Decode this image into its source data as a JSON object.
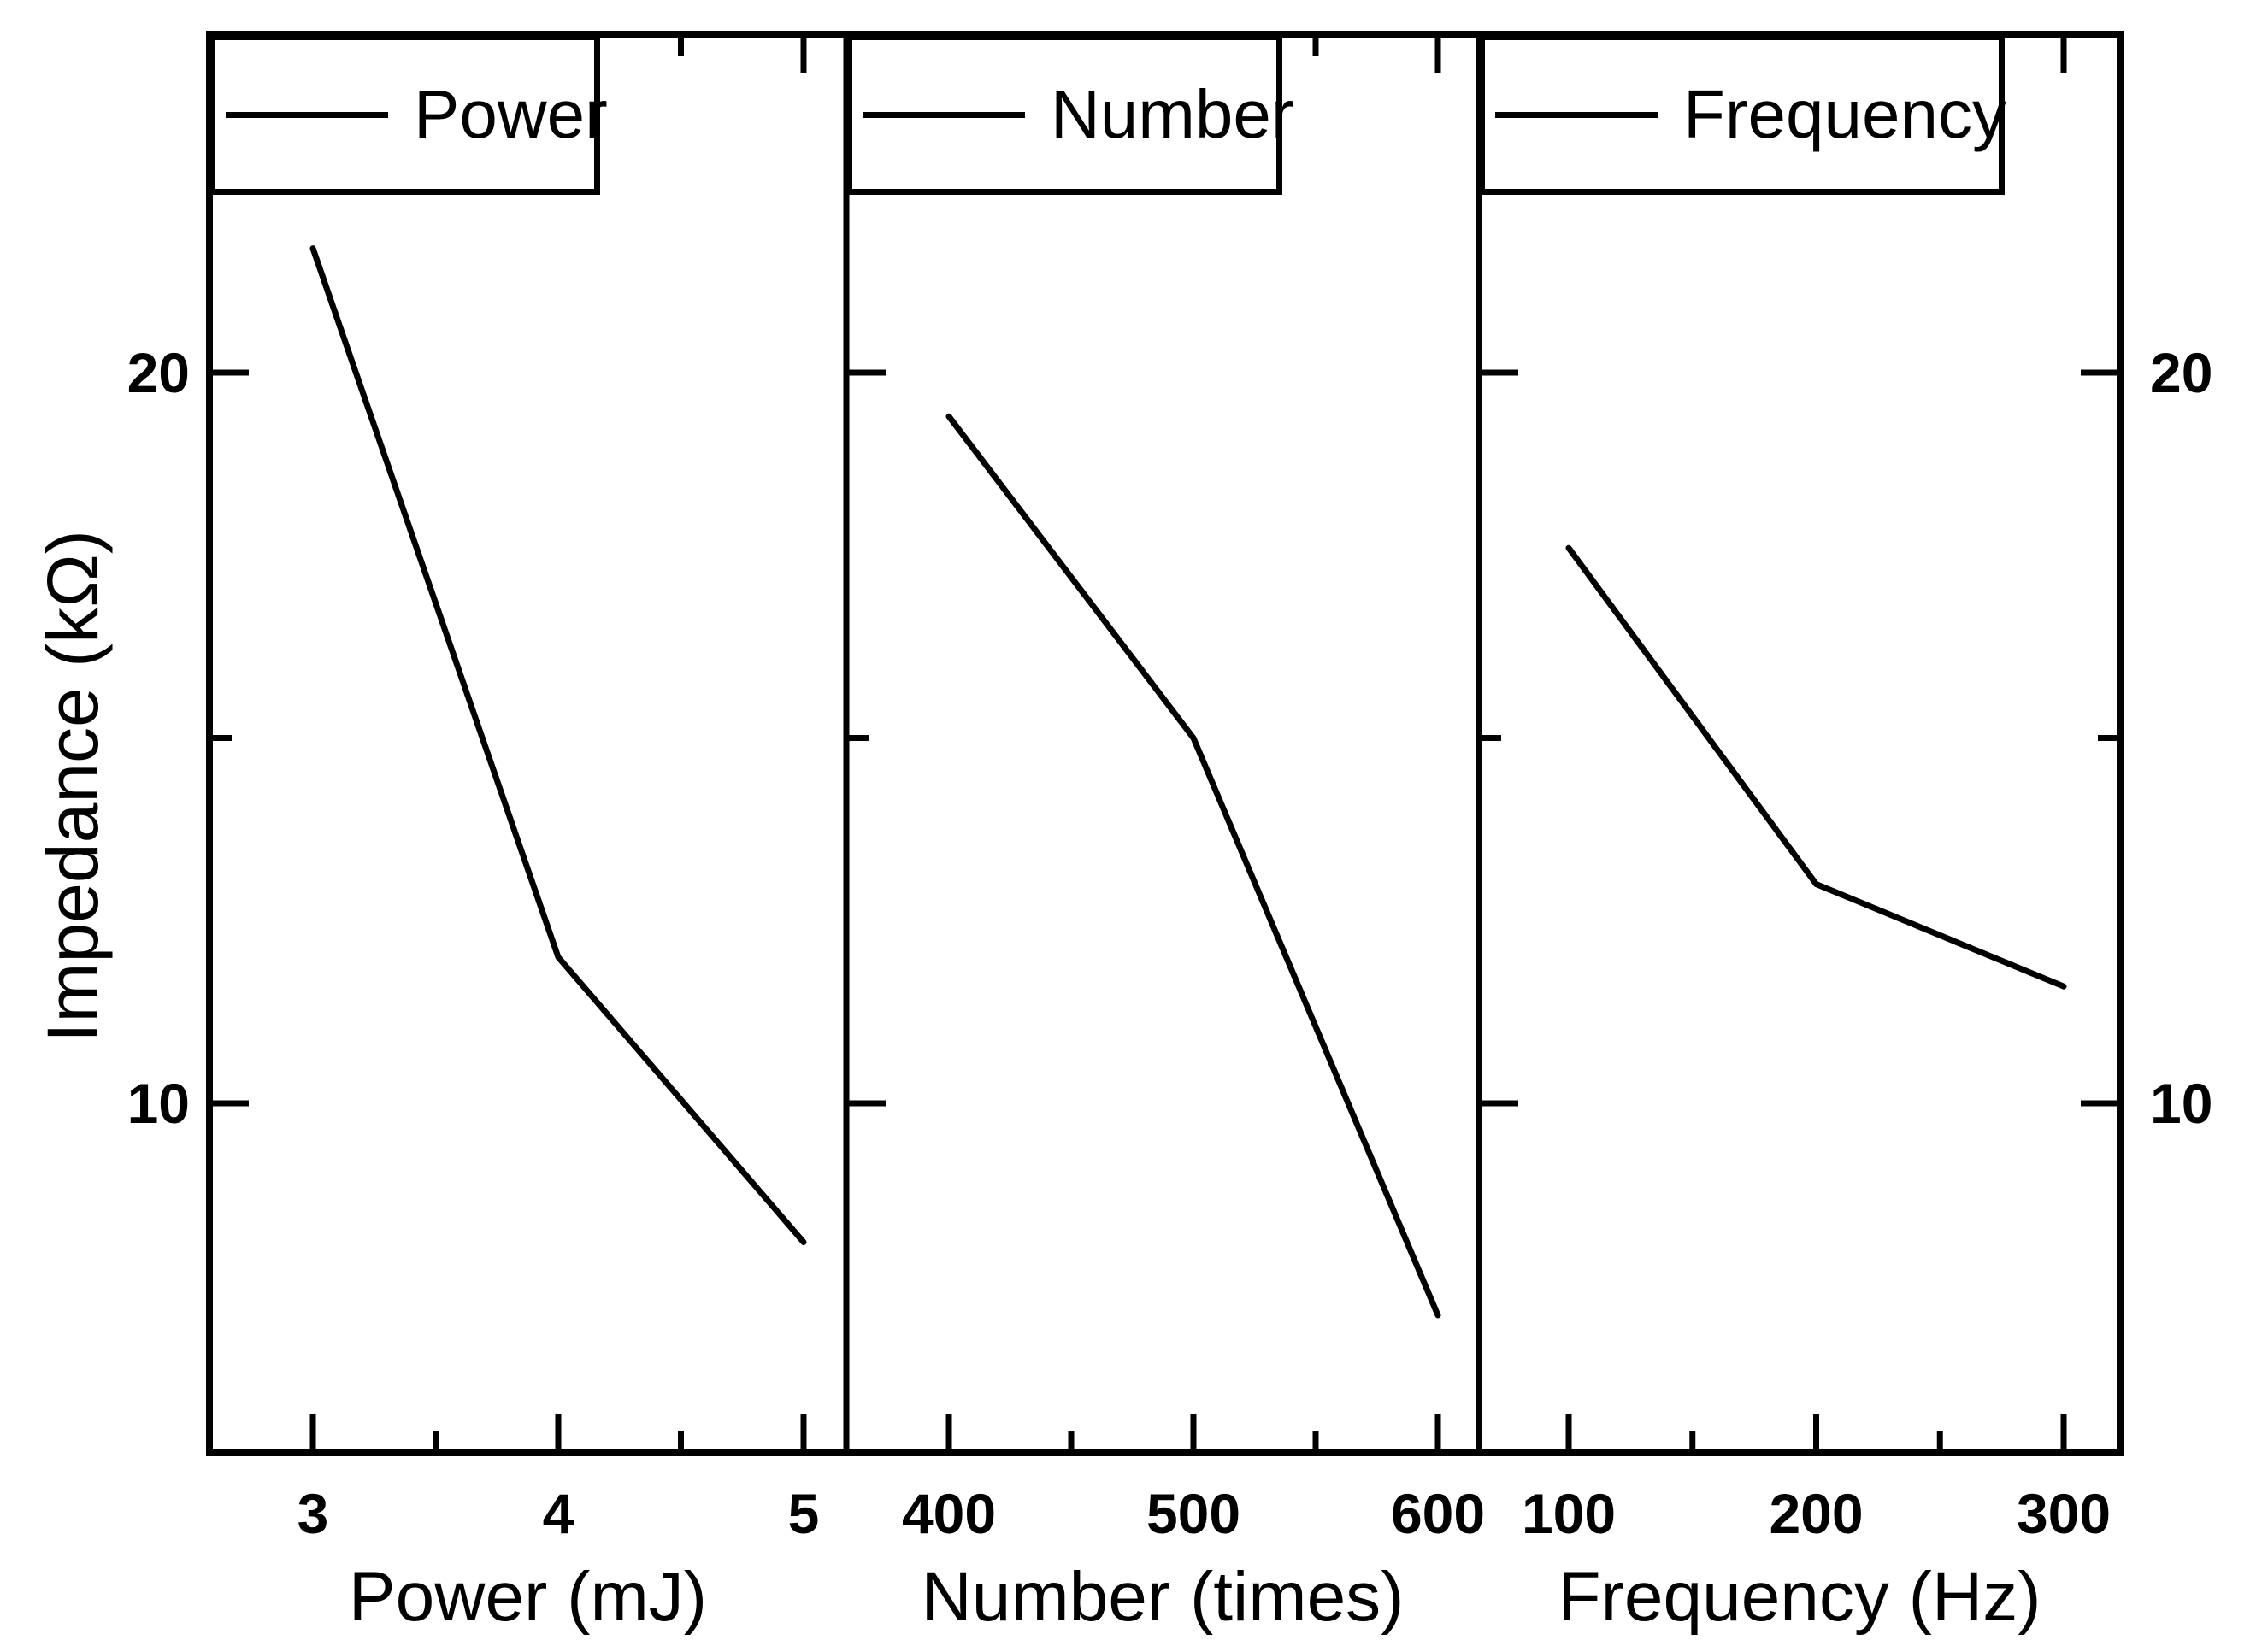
{
  "chart_data": {
    "type": "line",
    "title": "",
    "ylabel": "Impedance (kΩ)",
    "ylim": [
      5.2,
      24.6
    ],
    "y_major_ticks": [
      20,
      10
    ],
    "y_minor_ticks": [
      15
    ],
    "y_tick_labels": [
      "20",
      "10"
    ],
    "grid": false,
    "line_color": "#000000",
    "background_color": "#ffffff",
    "legend_position": "top-left of each panel",
    "panels": [
      {
        "name": "Power",
        "xlabel": "Power (mJ)",
        "xlim": [
          2.58,
          5.17
        ],
        "x_major_ticks": [
          3,
          4,
          5
        ],
        "x_minor_ticks": [
          3.5,
          4.5
        ],
        "x_tick_labels": [
          "3",
          "4",
          "5"
        ],
        "x": [
          3,
          4,
          5
        ],
        "y": [
          21.7,
          12.0,
          8.1
        ]
      },
      {
        "name": "Number",
        "xlabel": "Number (times)",
        "xlim": [
          358,
          617
        ],
        "x_major_ticks": [
          400,
          500,
          600
        ],
        "x_minor_ticks": [
          450,
          550
        ],
        "x_tick_labels": [
          "400",
          "500",
          "600"
        ],
        "x": [
          400,
          500,
          600
        ],
        "y": [
          19.4,
          15.0,
          7.1
        ]
      },
      {
        "name": "Frequency",
        "xlabel": "Frequency (Hz)",
        "xlim": [
          64,
          323
        ],
        "x_major_ticks": [
          100,
          200,
          300
        ],
        "x_minor_ticks": [
          150,
          250
        ],
        "x_tick_labels": [
          "100",
          "200",
          "300"
        ],
        "x": [
          100,
          200,
          300
        ],
        "y": [
          17.6,
          13.0,
          11.6
        ]
      }
    ]
  }
}
